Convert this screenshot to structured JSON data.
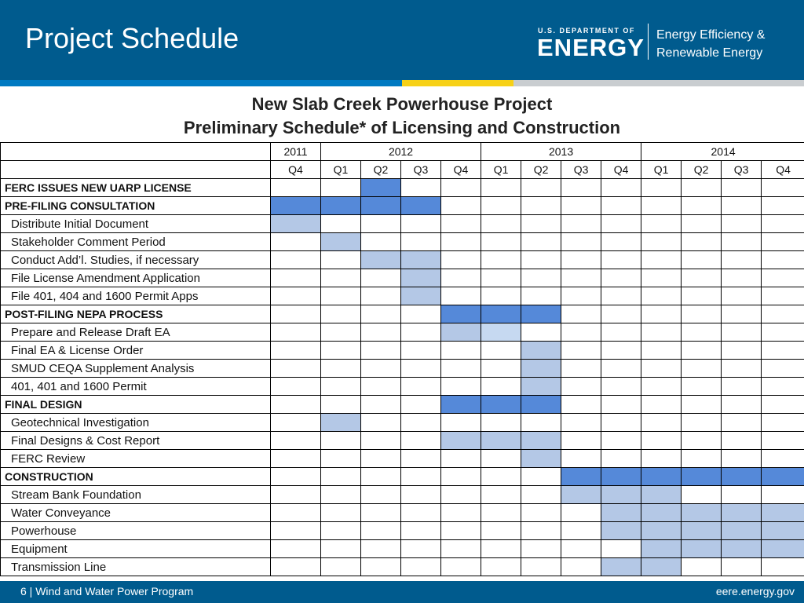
{
  "header": {
    "title": "Project Schedule",
    "doe_small": "U.S. DEPARTMENT OF",
    "doe_big": "ENERGY",
    "office_line1": "Energy Efficiency &",
    "office_line2": "Renewable Energy"
  },
  "colors": {
    "header_blue": "#005b8e",
    "stripe_blue": "#0079c1",
    "stripe_yellow": "#f7d117",
    "stripe_gray": "#c9cdd0",
    "bar_dark": "#5589d9",
    "bar_light": "#b4c8e6",
    "bar_pale": "#c6d9f1"
  },
  "subtitle": {
    "line1": "New Slab Creek Powerhouse Project",
    "line2": "Preliminary Schedule* of Licensing and Construction"
  },
  "schedule": {
    "years": [
      {
        "label": "2011",
        "span": 1
      },
      {
        "label": "2012",
        "span": 4
      },
      {
        "label": "2013",
        "span": 4
      },
      {
        "label": "2014",
        "span": 4
      }
    ],
    "quarters": [
      "Q4",
      "Q1",
      "Q2",
      "Q3",
      "Q4",
      "Q1",
      "Q2",
      "Q3",
      "Q4",
      "Q1",
      "Q2",
      "Q3",
      "Q4"
    ],
    "rows": [
      {
        "label": "FERC ISSUES NEW UARP LICENSE",
        "kind": "head",
        "cells": [
          0,
          0,
          2,
          0,
          0,
          0,
          0,
          0,
          0,
          0,
          0,
          0,
          0
        ]
      },
      {
        "label": "PRE-FILING CONSULTATION",
        "kind": "head",
        "cells": [
          2,
          2,
          2,
          2,
          0,
          0,
          0,
          0,
          0,
          0,
          0,
          0,
          0
        ]
      },
      {
        "label": "Distribute Initial Document",
        "kind": "task",
        "cells": [
          1,
          0,
          0,
          0,
          0,
          0,
          0,
          0,
          0,
          0,
          0,
          0,
          0
        ]
      },
      {
        "label": "Stakeholder Comment Period",
        "kind": "task",
        "cells": [
          0,
          1,
          0,
          0,
          0,
          0,
          0,
          0,
          0,
          0,
          0,
          0,
          0
        ]
      },
      {
        "label": "Conduct Add’l. Studies, if necessary",
        "kind": "task",
        "cells": [
          0,
          0,
          1,
          1,
          0,
          0,
          0,
          0,
          0,
          0,
          0,
          0,
          0
        ]
      },
      {
        "label": "File License Amendment Application",
        "kind": "task",
        "cells": [
          0,
          0,
          0,
          1,
          0,
          0,
          0,
          0,
          0,
          0,
          0,
          0,
          0
        ]
      },
      {
        "label": "File 401, 404 and 1600 Permit Apps",
        "kind": "task",
        "cells": [
          0,
          0,
          0,
          1,
          0,
          0,
          0,
          0,
          0,
          0,
          0,
          0,
          0
        ]
      },
      {
        "label": "POST-FILING  NEPA PROCESS",
        "kind": "head",
        "cells": [
          0,
          0,
          0,
          0,
          2,
          2,
          2,
          0,
          0,
          0,
          0,
          0,
          0
        ]
      },
      {
        "label": "Prepare and Release Draft EA",
        "kind": "task",
        "cells": [
          0,
          0,
          0,
          0,
          1,
          3,
          0,
          0,
          0,
          0,
          0,
          0,
          0
        ]
      },
      {
        "label": "Final EA & License Order",
        "kind": "task",
        "cells": [
          0,
          0,
          0,
          0,
          0,
          0,
          1,
          0,
          0,
          0,
          0,
          0,
          0
        ]
      },
      {
        "label": "SMUD CEQA Supplement Analysis",
        "kind": "task",
        "cells": [
          0,
          0,
          0,
          0,
          0,
          0,
          1,
          0,
          0,
          0,
          0,
          0,
          0
        ]
      },
      {
        "label": "401, 401 and 1600 Permit",
        "kind": "task",
        "cells": [
          0,
          0,
          0,
          0,
          0,
          0,
          1,
          0,
          0,
          0,
          0,
          0,
          0
        ]
      },
      {
        "label": "FINAL DESIGN",
        "kind": "head",
        "cells": [
          0,
          0,
          0,
          0,
          2,
          2,
          2,
          0,
          0,
          0,
          0,
          0,
          0
        ]
      },
      {
        "label": "Geotechnical Investigation",
        "kind": "task",
        "cells": [
          0,
          1,
          0,
          0,
          0,
          0,
          0,
          0,
          0,
          0,
          0,
          0,
          0
        ]
      },
      {
        "label": "Final Designs & Cost Report",
        "kind": "task",
        "cells": [
          0,
          0,
          0,
          0,
          1,
          1,
          1,
          0,
          0,
          0,
          0,
          0,
          0
        ]
      },
      {
        "label": "FERC Review",
        "kind": "task",
        "cells": [
          0,
          0,
          0,
          0,
          0,
          0,
          1,
          0,
          0,
          0,
          0,
          0,
          0
        ]
      },
      {
        "label": "CONSTRUCTION",
        "kind": "head",
        "cells": [
          0,
          0,
          0,
          0,
          0,
          0,
          0,
          2,
          2,
          2,
          2,
          2,
          2
        ]
      },
      {
        "label": "Stream Bank Foundation",
        "kind": "task",
        "cells": [
          0,
          0,
          0,
          0,
          0,
          0,
          0,
          1,
          1,
          1,
          0,
          0,
          0
        ]
      },
      {
        "label": "Water Conveyance",
        "kind": "task",
        "cells": [
          0,
          0,
          0,
          0,
          0,
          0,
          0,
          0,
          1,
          1,
          1,
          1,
          1
        ]
      },
      {
        "label": "Powerhouse",
        "kind": "task",
        "cells": [
          0,
          0,
          0,
          0,
          0,
          0,
          0,
          0,
          1,
          1,
          1,
          1,
          1
        ]
      },
      {
        "label": "Equipment",
        "kind": "task",
        "cells": [
          0,
          0,
          0,
          0,
          0,
          0,
          0,
          0,
          0,
          1,
          1,
          1,
          1
        ]
      },
      {
        "label": "Transmission Line",
        "kind": "task",
        "cells": [
          0,
          0,
          0,
          0,
          0,
          0,
          0,
          0,
          1,
          1,
          0,
          0,
          0
        ]
      }
    ]
  },
  "footer": {
    "left": "6 | Wind and Water Power Program",
    "right": "eere.energy.gov"
  }
}
